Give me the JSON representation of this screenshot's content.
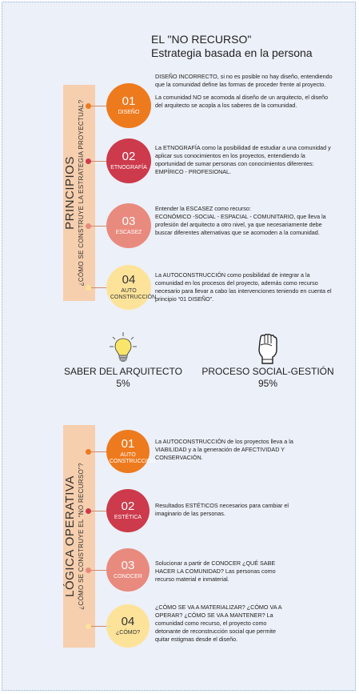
{
  "title": {
    "line1": "EL \"NO RECURSO\"",
    "line2": "Estrategia basada en la persona"
  },
  "colors": {
    "orange": "#ee7a1e",
    "crimson": "#cc3a4c",
    "salmon": "#e98a7e",
    "yellow": "#fde39a",
    "bar": "#f6cfae"
  },
  "principios": {
    "heading": "PRINCIPIOS",
    "question": "¿CÓMO SE CONSTRUYE LA ESTRATEGIA PROYECTUAL?",
    "items": [
      {
        "num": "01",
        "label": "DISEÑO",
        "p1": "DISEÑO INCORRECTO, si no es posible no hay diseño, entendiendo que la comunidad define las formas de proceder frente al proyecto.",
        "p2": "La comunidad NO se acomoda al diseño de un arquitecto, el diseño del arquitecto se acopla a los saberes de la comunidad."
      },
      {
        "num": "02",
        "label": "ETNOGRAFÍA",
        "p1": "La ETNOGRAFÍA como la posibilidad de estudiar a una comunidad y aplicar sus conocimientos en los proyectos, entendiendo la oportunidad de sumar personas con conocimientos diferentes: EMPÍRICO - PROFESIONAL."
      },
      {
        "num": "03",
        "label": "ESCASEZ",
        "p1": "Entender la ESCASEZ como recurso:",
        "p2": "ECONÓMICO -SOCIAL - ESPACIAL - COMUNITARIO, que lleva la profesión del arquitecto a otro nivel, ya que necesariamente debe buscar diferentes alternativas que se acomoden a la comunidad."
      },
      {
        "num": "04",
        "label": "AUTO CONSTRUCCIÓN",
        "p1": "La AUTOCONSTRUCCIÓN como posibilidad de integrar a la comunidad en los procesos del proyecto, además como recurso necesario para llevar a cabo las intervenciones teniendo en cuenta el principio “01 DISEÑO”."
      }
    ]
  },
  "comparison": {
    "left": {
      "label": "SABER DEL ARQUITECTO",
      "value": "5%",
      "icon": "lightbulb-icon"
    },
    "right": {
      "label": "PROCESO SOCIAL-GESTIÓN",
      "value": "95%",
      "icon": "raised-fist-icon"
    }
  },
  "logica": {
    "heading": "LÓGICA OPERATIVA",
    "question": "¿CÓMO SE CONSTRUYE EL “NO RECURSO”?",
    "items": [
      {
        "num": "01",
        "label": "AUTO CONSTRUCCIÓN",
        "p1": "La AUTOCONSTRUCCIÓN de los proyectos lleva a la VIABILIDAD y a la generación de AFECTIVIDAD Y CONSERVACIÓN."
      },
      {
        "num": "02",
        "label": "ESTÉTICA",
        "p1": "Resultados ESTÉTICOS necesarios para cambiar el imaginario de las personas."
      },
      {
        "num": "03",
        "label": "CONOCER",
        "p1": "Solucionar a partir de CONOCER ¿QUÉ SABE HACER LA COMUNIDAD? Las personas como recurso material e inmaterial."
      },
      {
        "num": "04",
        "label": "¿CÓMO?",
        "p1": "¿CÓMO SE VA A MATERIALIZAR? ¿CÓMO VA A OPERAR? ¿CÓMO SE VA A MANTENER? La comunidad como recurso, el proyecto como detonante de reconstrucción social que permite quitar estigmas desde el diseño."
      }
    ]
  }
}
